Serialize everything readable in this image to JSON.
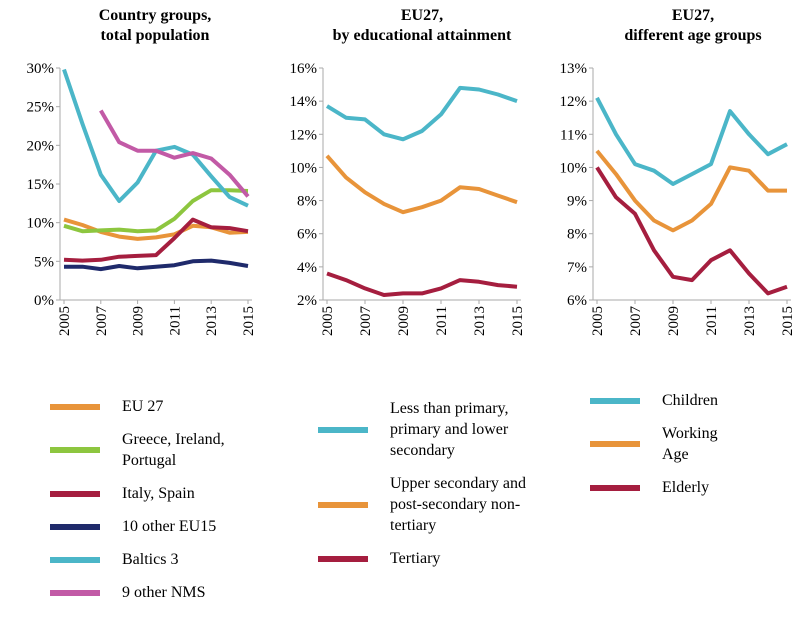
{
  "chart_data": [
    {
      "type": "line",
      "title": "Country groups,\ntotal population",
      "x": [
        2005,
        2006,
        2007,
        2008,
        2009,
        2010,
        2011,
        2012,
        2013,
        2014,
        2015
      ],
      "xlim": [
        2005,
        2015
      ],
      "xticks": [
        2005,
        2007,
        2009,
        2011,
        2013,
        2015
      ],
      "ylim": [
        0,
        30
      ],
      "yticks": [
        {
          "value": 0,
          "label": "0%"
        },
        {
          "value": 5,
          "label": "5%"
        },
        {
          "value": 10,
          "label": "10%"
        },
        {
          "value": 15,
          "label": "15%"
        },
        {
          "value": 20,
          "label": "20%"
        },
        {
          "value": 25,
          "label": "25%"
        },
        {
          "value": 30,
          "label": "30%"
        }
      ],
      "series": [
        {
          "name": "EU 27",
          "color": "#e8943a",
          "values": [
            10.4,
            9.7,
            8.8,
            8.2,
            7.9,
            8.1,
            8.5,
            9.6,
            9.4,
            8.7,
            8.8
          ]
        },
        {
          "name": "Greece, Ireland,\nPortugal",
          "color": "#8dc63f",
          "values": [
            9.6,
            8.9,
            9.0,
            9.1,
            8.9,
            9.0,
            10.5,
            12.8,
            14.2,
            14.2,
            14.1
          ]
        },
        {
          "name": "Italy, Spain",
          "color": "#a51e3f",
          "values": [
            5.2,
            5.1,
            5.2,
            5.6,
            5.7,
            5.8,
            8.0,
            10.4,
            9.4,
            9.3,
            8.9
          ]
        },
        {
          "name": "10 other EU15",
          "color": "#1f2a6b",
          "values": [
            4.3,
            4.3,
            4.0,
            4.4,
            4.1,
            4.3,
            4.5,
            5.0,
            5.1,
            4.8,
            4.4
          ]
        },
        {
          "name": "Baltics 3",
          "color": "#4bb6c8",
          "values": [
            29.8,
            22.8,
            16.2,
            12.8,
            15.2,
            19.3,
            19.8,
            18.8,
            16.0,
            13.3,
            12.2
          ]
        },
        {
          "name": "9 other NMS",
          "color": "#c25aa6",
          "values": [
            null,
            null,
            24.5,
            20.4,
            19.3,
            19.3,
            18.4,
            19.0,
            18.3,
            16.2,
            13.4
          ]
        }
      ]
    },
    {
      "type": "line",
      "title": "EU27,\nby educational attainment",
      "x": [
        2005,
        2006,
        2007,
        2008,
        2009,
        2010,
        2011,
        2012,
        2013,
        2014,
        2015
      ],
      "xlim": [
        2005,
        2015
      ],
      "xticks": [
        2005,
        2007,
        2009,
        2011,
        2013,
        2015
      ],
      "ylim": [
        2,
        16
      ],
      "yticks": [
        {
          "value": 2,
          "label": "2%"
        },
        {
          "value": 4,
          "label": "4%"
        },
        {
          "value": 6,
          "label": "6%"
        },
        {
          "value": 8,
          "label": "8%"
        },
        {
          "value": 10,
          "label": "10%"
        },
        {
          "value": 12,
          "label": "12%"
        },
        {
          "value": 14,
          "label": "14%"
        },
        {
          "value": 16,
          "label": "16%"
        }
      ],
      "series": [
        {
          "name": "Less than primary,\nprimary and lower\nsecondary",
          "color": "#4bb6c8",
          "values": [
            13.7,
            13.0,
            12.9,
            12.0,
            11.7,
            12.2,
            13.2,
            14.8,
            14.7,
            14.4,
            14.0
          ]
        },
        {
          "name": "Upper secondary and\npost-secondary non-\ntertiary",
          "color": "#e8943a",
          "values": [
            10.7,
            9.4,
            8.5,
            7.8,
            7.3,
            7.6,
            8.0,
            8.8,
            8.7,
            8.3,
            7.9
          ]
        },
        {
          "name": "Tertiary",
          "color": "#a51e3f",
          "values": [
            3.6,
            3.2,
            2.7,
            2.3,
            2.4,
            2.4,
            2.7,
            3.2,
            3.1,
            2.9,
            2.8
          ]
        }
      ]
    },
    {
      "type": "line",
      "title": "EU27,\ndifferent age groups",
      "x": [
        2005,
        2006,
        2007,
        2008,
        2009,
        2010,
        2011,
        2012,
        2013,
        2014,
        2015
      ],
      "xlim": [
        2005,
        2015
      ],
      "xticks": [
        2005,
        2007,
        2009,
        2011,
        2013,
        2015
      ],
      "ylim": [
        6,
        13
      ],
      "yticks": [
        {
          "value": 6,
          "label": "6%"
        },
        {
          "value": 7,
          "label": "7%"
        },
        {
          "value": 8,
          "label": "8%"
        },
        {
          "value": 9,
          "label": "9%"
        },
        {
          "value": 10,
          "label": "10%"
        },
        {
          "value": 11,
          "label": "11%"
        },
        {
          "value": 12,
          "label": "12%"
        },
        {
          "value": 13,
          "label": "13%"
        }
      ],
      "series": [
        {
          "name": "Children",
          "color": "#4bb6c8",
          "values": [
            12.1,
            11.0,
            10.1,
            9.9,
            9.5,
            9.8,
            10.1,
            11.7,
            11.0,
            10.4,
            10.7
          ]
        },
        {
          "name": "Working\nAge",
          "color": "#e8943a",
          "values": [
            10.5,
            9.8,
            9.0,
            8.4,
            8.1,
            8.4,
            8.9,
            10.0,
            9.9,
            9.3,
            9.3
          ]
        },
        {
          "name": "Elderly",
          "color": "#a51e3f",
          "values": [
            10.0,
            9.1,
            8.6,
            7.5,
            6.7,
            6.6,
            7.2,
            7.5,
            6.8,
            6.2,
            6.4
          ]
        }
      ]
    }
  ]
}
